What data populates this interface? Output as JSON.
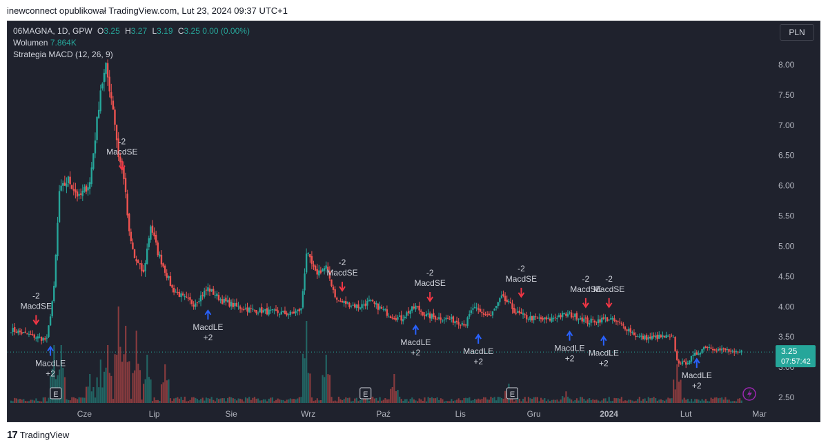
{
  "header": {
    "caption": "inewconnect opublikował TradingView.com, Lut 23, 2024 09:37 UTC+1"
  },
  "legend": {
    "symbol": "06MAGNA, 1D, GPW",
    "o_label": "O",
    "o": "3.25",
    "h_label": "H",
    "h": "3.27",
    "l_label": "L",
    "l": "3.19",
    "c_label": "C",
    "c": "3.25",
    "change": "0.00 (0.00%)",
    "volume_label": "Wolumen",
    "volume": "7.864K",
    "strategy": "Strategia MACD (12, 26, 9)"
  },
  "currency_button": "PLN",
  "price_tag": {
    "price": "3.25",
    "countdown": "07:57:42"
  },
  "footer": {
    "brand": "TradingView"
  },
  "colors": {
    "up": "#26a69a",
    "down": "#ef5350",
    "signal_long": "#2962ff",
    "signal_short": "#f23645",
    "background": "#1f222d",
    "text": "#b2b5be"
  },
  "chart_data": {
    "type": "candlestick",
    "y_ticks": [
      "8.00",
      "7.50",
      "7.00",
      "6.50",
      "6.00",
      "5.50",
      "5.00",
      "4.50",
      "4.00",
      "3.50",
      "3.00",
      "2.50"
    ],
    "ylim": [
      2.4,
      8.3
    ],
    "x_ticks": [
      {
        "label": "Cze",
        "t": 41
      },
      {
        "label": "Lip",
        "t": 80
      },
      {
        "label": "Sie",
        "t": 123
      },
      {
        "label": "Wrz",
        "t": 166
      },
      {
        "label": "Paź",
        "t": 208
      },
      {
        "label": "Lis",
        "t": 251
      },
      {
        "label": "Gru",
        "t": 292
      },
      {
        "label": "2024",
        "t": 334
      },
      {
        "label": "Lut",
        "t": 377
      },
      {
        "label": "Mar",
        "t": 418
      }
    ],
    "xlim": [
      0,
      430
    ],
    "current_price": 3.25,
    "anchors": [
      [
        0,
        3.62
      ],
      [
        8,
        3.55
      ],
      [
        20,
        3.45
      ],
      [
        24,
        4.3
      ],
      [
        27,
        5.9
      ],
      [
        32,
        6.1
      ],
      [
        38,
        5.8
      ],
      [
        44,
        6.05
      ],
      [
        47,
        6.8
      ],
      [
        50,
        7.6
      ],
      [
        53,
        7.95
      ],
      [
        57,
        7.3
      ],
      [
        60,
        6.5
      ],
      [
        63,
        6.15
      ],
      [
        66,
        5.2
      ],
      [
        69,
        4.8
      ],
      [
        74,
        4.55
      ],
      [
        78,
        5.35
      ],
      [
        82,
        4.9
      ],
      [
        86,
        4.6
      ],
      [
        90,
        4.3
      ],
      [
        96,
        4.15
      ],
      [
        102,
        4.05
      ],
      [
        110,
        4.3
      ],
      [
        118,
        4.1
      ],
      [
        126,
        4.0
      ],
      [
        134,
        3.95
      ],
      [
        142,
        3.92
      ],
      [
        150,
        3.9
      ],
      [
        156,
        3.88
      ],
      [
        162,
        3.95
      ],
      [
        165,
        4.9
      ],
      [
        170,
        4.55
      ],
      [
        176,
        4.65
      ],
      [
        182,
        4.1
      ],
      [
        188,
        4.05
      ],
      [
        194,
        4.0
      ],
      [
        200,
        4.08
      ],
      [
        206,
        3.98
      ],
      [
        212,
        3.85
      ],
      [
        218,
        3.8
      ],
      [
        222,
        3.92
      ],
      [
        226,
        4.0
      ],
      [
        232,
        3.85
      ],
      [
        238,
        3.82
      ],
      [
        244,
        3.8
      ],
      [
        250,
        3.75
      ],
      [
        254,
        3.72
      ],
      [
        258,
        3.98
      ],
      [
        262,
        3.9
      ],
      [
        268,
        3.85
      ],
      [
        274,
        4.15
      ],
      [
        278,
        4.05
      ],
      [
        282,
        3.9
      ],
      [
        288,
        3.82
      ],
      [
        294,
        3.8
      ],
      [
        300,
        3.78
      ],
      [
        306,
        3.85
      ],
      [
        312,
        3.87
      ],
      [
        318,
        3.82
      ],
      [
        322,
        3.75
      ],
      [
        328,
        3.78
      ],
      [
        334,
        3.8
      ],
      [
        340,
        3.72
      ],
      [
        346,
        3.6
      ],
      [
        350,
        3.5
      ],
      [
        356,
        3.48
      ],
      [
        362,
        3.5
      ],
      [
        366,
        3.5
      ],
      [
        370,
        3.47
      ],
      [
        372,
        3.1
      ],
      [
        376,
        3.05
      ],
      [
        380,
        3.15
      ],
      [
        384,
        3.25
      ],
      [
        388,
        3.35
      ],
      [
        392,
        3.32
      ],
      [
        396,
        3.28
      ],
      [
        400,
        3.28
      ],
      [
        404,
        3.22
      ],
      [
        408,
        3.25
      ]
    ],
    "volume_spikes": [
      [
        24,
        0.6
      ],
      [
        28,
        0.6
      ],
      [
        44,
        0.3
      ],
      [
        50,
        0.45
      ],
      [
        54,
        0.6
      ],
      [
        60,
        1.0
      ],
      [
        64,
        0.8
      ],
      [
        70,
        0.75
      ],
      [
        76,
        0.5
      ],
      [
        86,
        0.4
      ],
      [
        165,
        0.85
      ],
      [
        176,
        0.5
      ],
      [
        214,
        0.3
      ],
      [
        278,
        0.2
      ],
      [
        310,
        0.12
      ],
      [
        372,
        0.4
      ]
    ],
    "signals": [
      {
        "type": "short",
        "t": 14,
        "price": 3.6,
        "side": "above",
        "text1": "-2",
        "text2": "MacdSE"
      },
      {
        "type": "long",
        "t": 22,
        "price": 3.45,
        "side": "below",
        "text1": "MacdLE",
        "text2": "+2"
      },
      {
        "type": "short",
        "t": 62,
        "price": 6.15,
        "side": "above",
        "text1": "-2",
        "text2": "MacdSE"
      },
      {
        "type": "long",
        "t": 110,
        "price": 4.05,
        "side": "below",
        "text1": "MacdLE",
        "text2": "+2"
      },
      {
        "type": "short",
        "t": 185,
        "price": 4.15,
        "side": "above",
        "text1": "-2",
        "text2": "MacdSE"
      },
      {
        "type": "long",
        "t": 226,
        "price": 3.8,
        "side": "below",
        "text1": "MacdLE",
        "text2": "+2"
      },
      {
        "type": "short",
        "t": 234,
        "price": 3.98,
        "side": "above",
        "text1": "-2",
        "text2": "MacdSE"
      },
      {
        "type": "long",
        "t": 261,
        "price": 3.65,
        "side": "below",
        "text1": "MacdLE",
        "text2": "+2"
      },
      {
        "type": "short",
        "t": 285,
        "price": 4.05,
        "side": "above",
        "text1": "-2",
        "text2": "MacdSE"
      },
      {
        "type": "long",
        "t": 312,
        "price": 3.7,
        "side": "below",
        "text1": "MacdLE",
        "text2": "+2"
      },
      {
        "type": "short",
        "t": 321,
        "price": 3.88,
        "side": "above",
        "text1": "-2",
        "text2": "MacdSE"
      },
      {
        "type": "short",
        "t": 334,
        "price": 3.88,
        "side": "above",
        "text1": "-2",
        "text2": "MacdSE"
      },
      {
        "type": "long",
        "t": 331,
        "price": 3.62,
        "side": "below",
        "text1": "MacdLE",
        "text2": "+2"
      },
      {
        "type": "long",
        "t": 383,
        "price": 3.25,
        "side": "below",
        "text1": "MacdLE",
        "text2": "+2"
      }
    ],
    "events": [
      {
        "t": 25,
        "label": "E"
      },
      {
        "t": 198,
        "label": "E"
      },
      {
        "t": 280,
        "label": "E"
      }
    ]
  }
}
